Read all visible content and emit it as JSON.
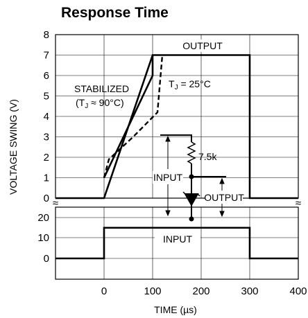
{
  "chart_data": {
    "type": "line",
    "title": "Response Time",
    "xlabel": "TIME (µs)",
    "ylabel": "VOLTAGE SWING (V)",
    "x_ticks": [
      "0",
      "100",
      "200",
      "300",
      "400"
    ],
    "xlim": [
      -100,
      400
    ],
    "top_panel": {
      "ylim": [
        0,
        8
      ],
      "y_ticks": [
        "0",
        "1",
        "2",
        "3",
        "4",
        "5",
        "6",
        "7",
        "8"
      ],
      "series": [
        {
          "name": "OUTPUT",
          "style": "solid-flat",
          "x": [
            -100,
            0,
            100,
            300,
            300,
            400
          ],
          "y": [
            0,
            0,
            7,
            7,
            0,
            0
          ]
        },
        {
          "name": "STABILIZED (TJ ≈ 90°C)",
          "style": "solid",
          "x": [
            0,
            100,
            100
          ],
          "y": [
            1,
            6,
            7
          ]
        },
        {
          "name": "TJ = 25°C",
          "style": "dashed",
          "x": [
            0,
            10,
            60,
            110,
            120
          ],
          "y": [
            1,
            1.9,
            3.0,
            4.2,
            7
          ]
        }
      ]
    },
    "bottom_panel": {
      "y_ticks": [
        "20",
        "10",
        "0"
      ],
      "series": [
        {
          "name": "INPUT",
          "x": [
            -100,
            0,
            0,
            300,
            300,
            400
          ],
          "y": [
            0,
            0,
            15,
            15,
            0,
            0
          ]
        }
      ]
    },
    "labels": {
      "output": "OUTPUT",
      "stabilized_line1": "STABILIZED",
      "stabilized_line2_prefix": "(T",
      "stabilized_sub": "J",
      "stabilized_line2_suffix": " ≈ 90°C)",
      "t25_prefix": "T",
      "t25_sub": "J",
      "t25_suffix": " = 25°C",
      "input": "INPUT",
      "break_mark": "≈"
    },
    "inset": {
      "resistor": "7.5k",
      "input_label": "INPUT",
      "output_label": "OUTPUT"
    }
  }
}
